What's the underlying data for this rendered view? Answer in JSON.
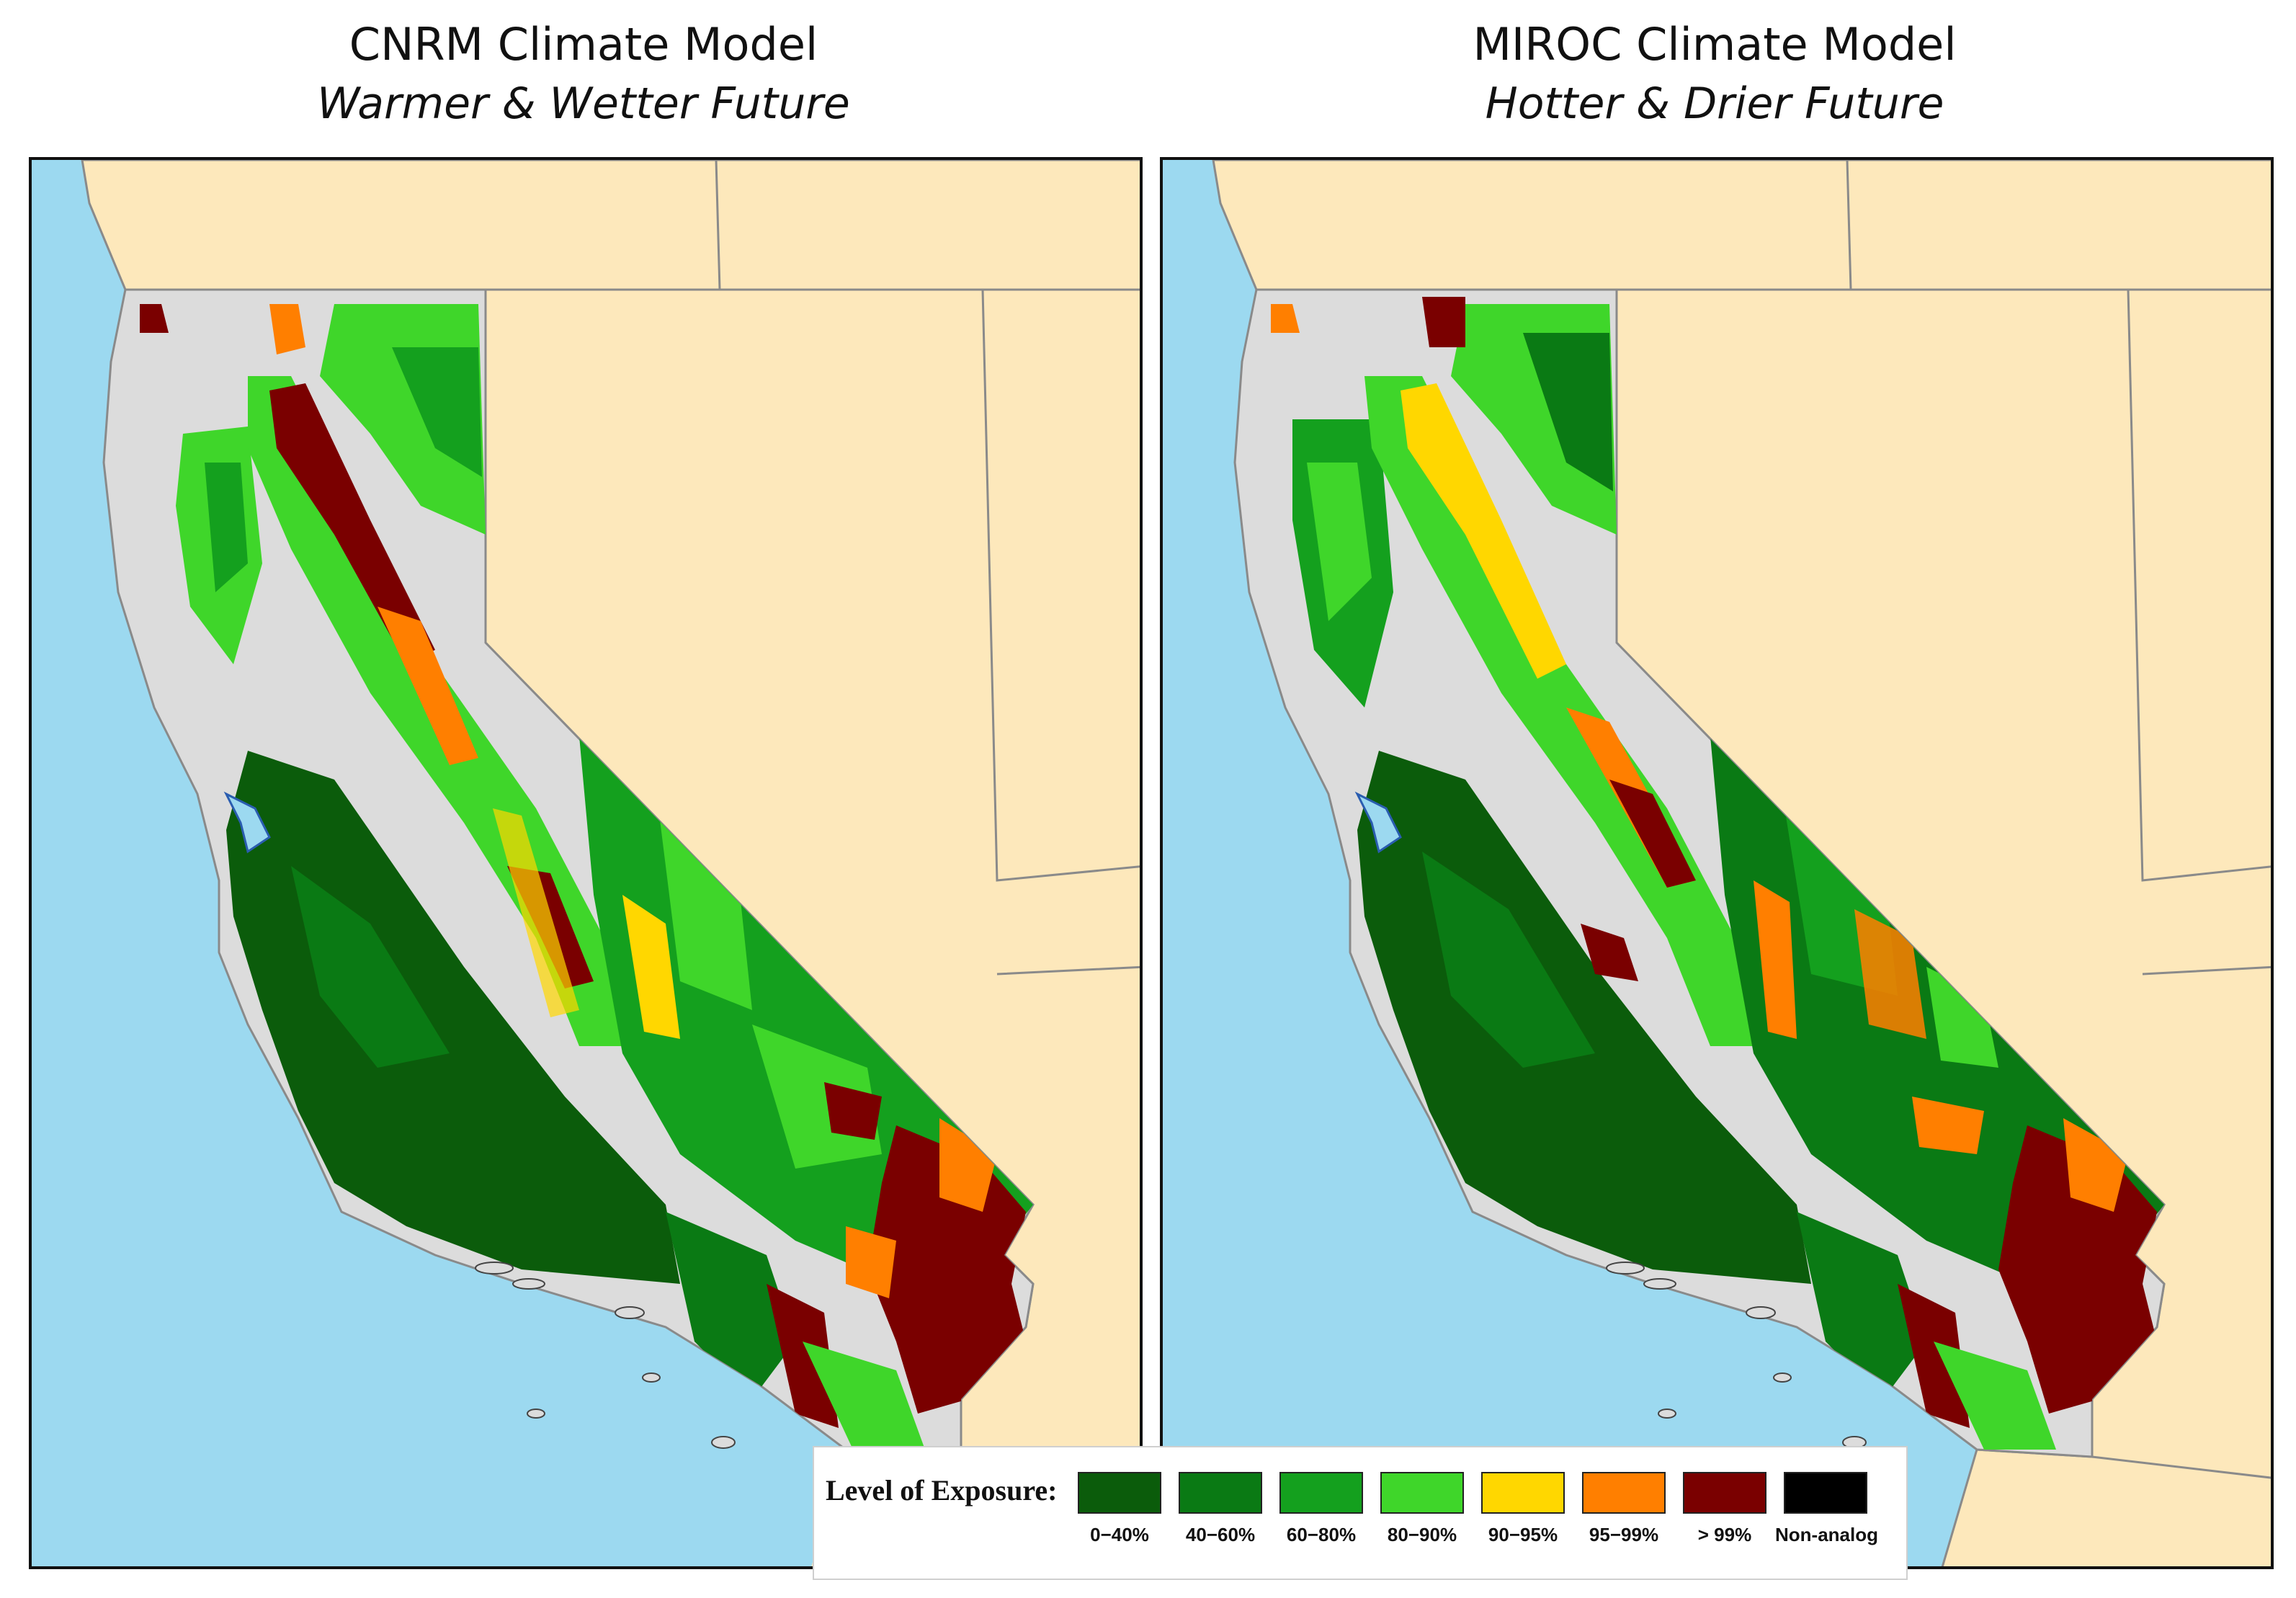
{
  "panels": [
    {
      "title": "CNRM Climate Model",
      "subtitle": "Warmer & Wetter Future"
    },
    {
      "title": "MIROC Climate Model",
      "subtitle": "Hotter & Drier Future"
    }
  ],
  "legend": {
    "title": "Level of Exposure:",
    "items": [
      {
        "label": "0−40%",
        "color": "#0b5c0b"
      },
      {
        "label": "40−60%",
        "color": "#0a7a14"
      },
      {
        "label": "60−80%",
        "color": "#14a01e"
      },
      {
        "label": "80−90%",
        "color": "#3fd62a"
      },
      {
        "label": "90−95%",
        "color": "#ffd700"
      },
      {
        "label": "95−99%",
        "color": "#ff7f00"
      },
      {
        "label": "> 99%",
        "color": "#7a0000"
      },
      {
        "label": "Non-analog",
        "color": "#000000"
      }
    ]
  },
  "colors": {
    "ocean": "#9cd9f0",
    "land_outside": "#fde8bb",
    "no_data": "#dcdcdc",
    "state_border": "#8a8a8a"
  }
}
